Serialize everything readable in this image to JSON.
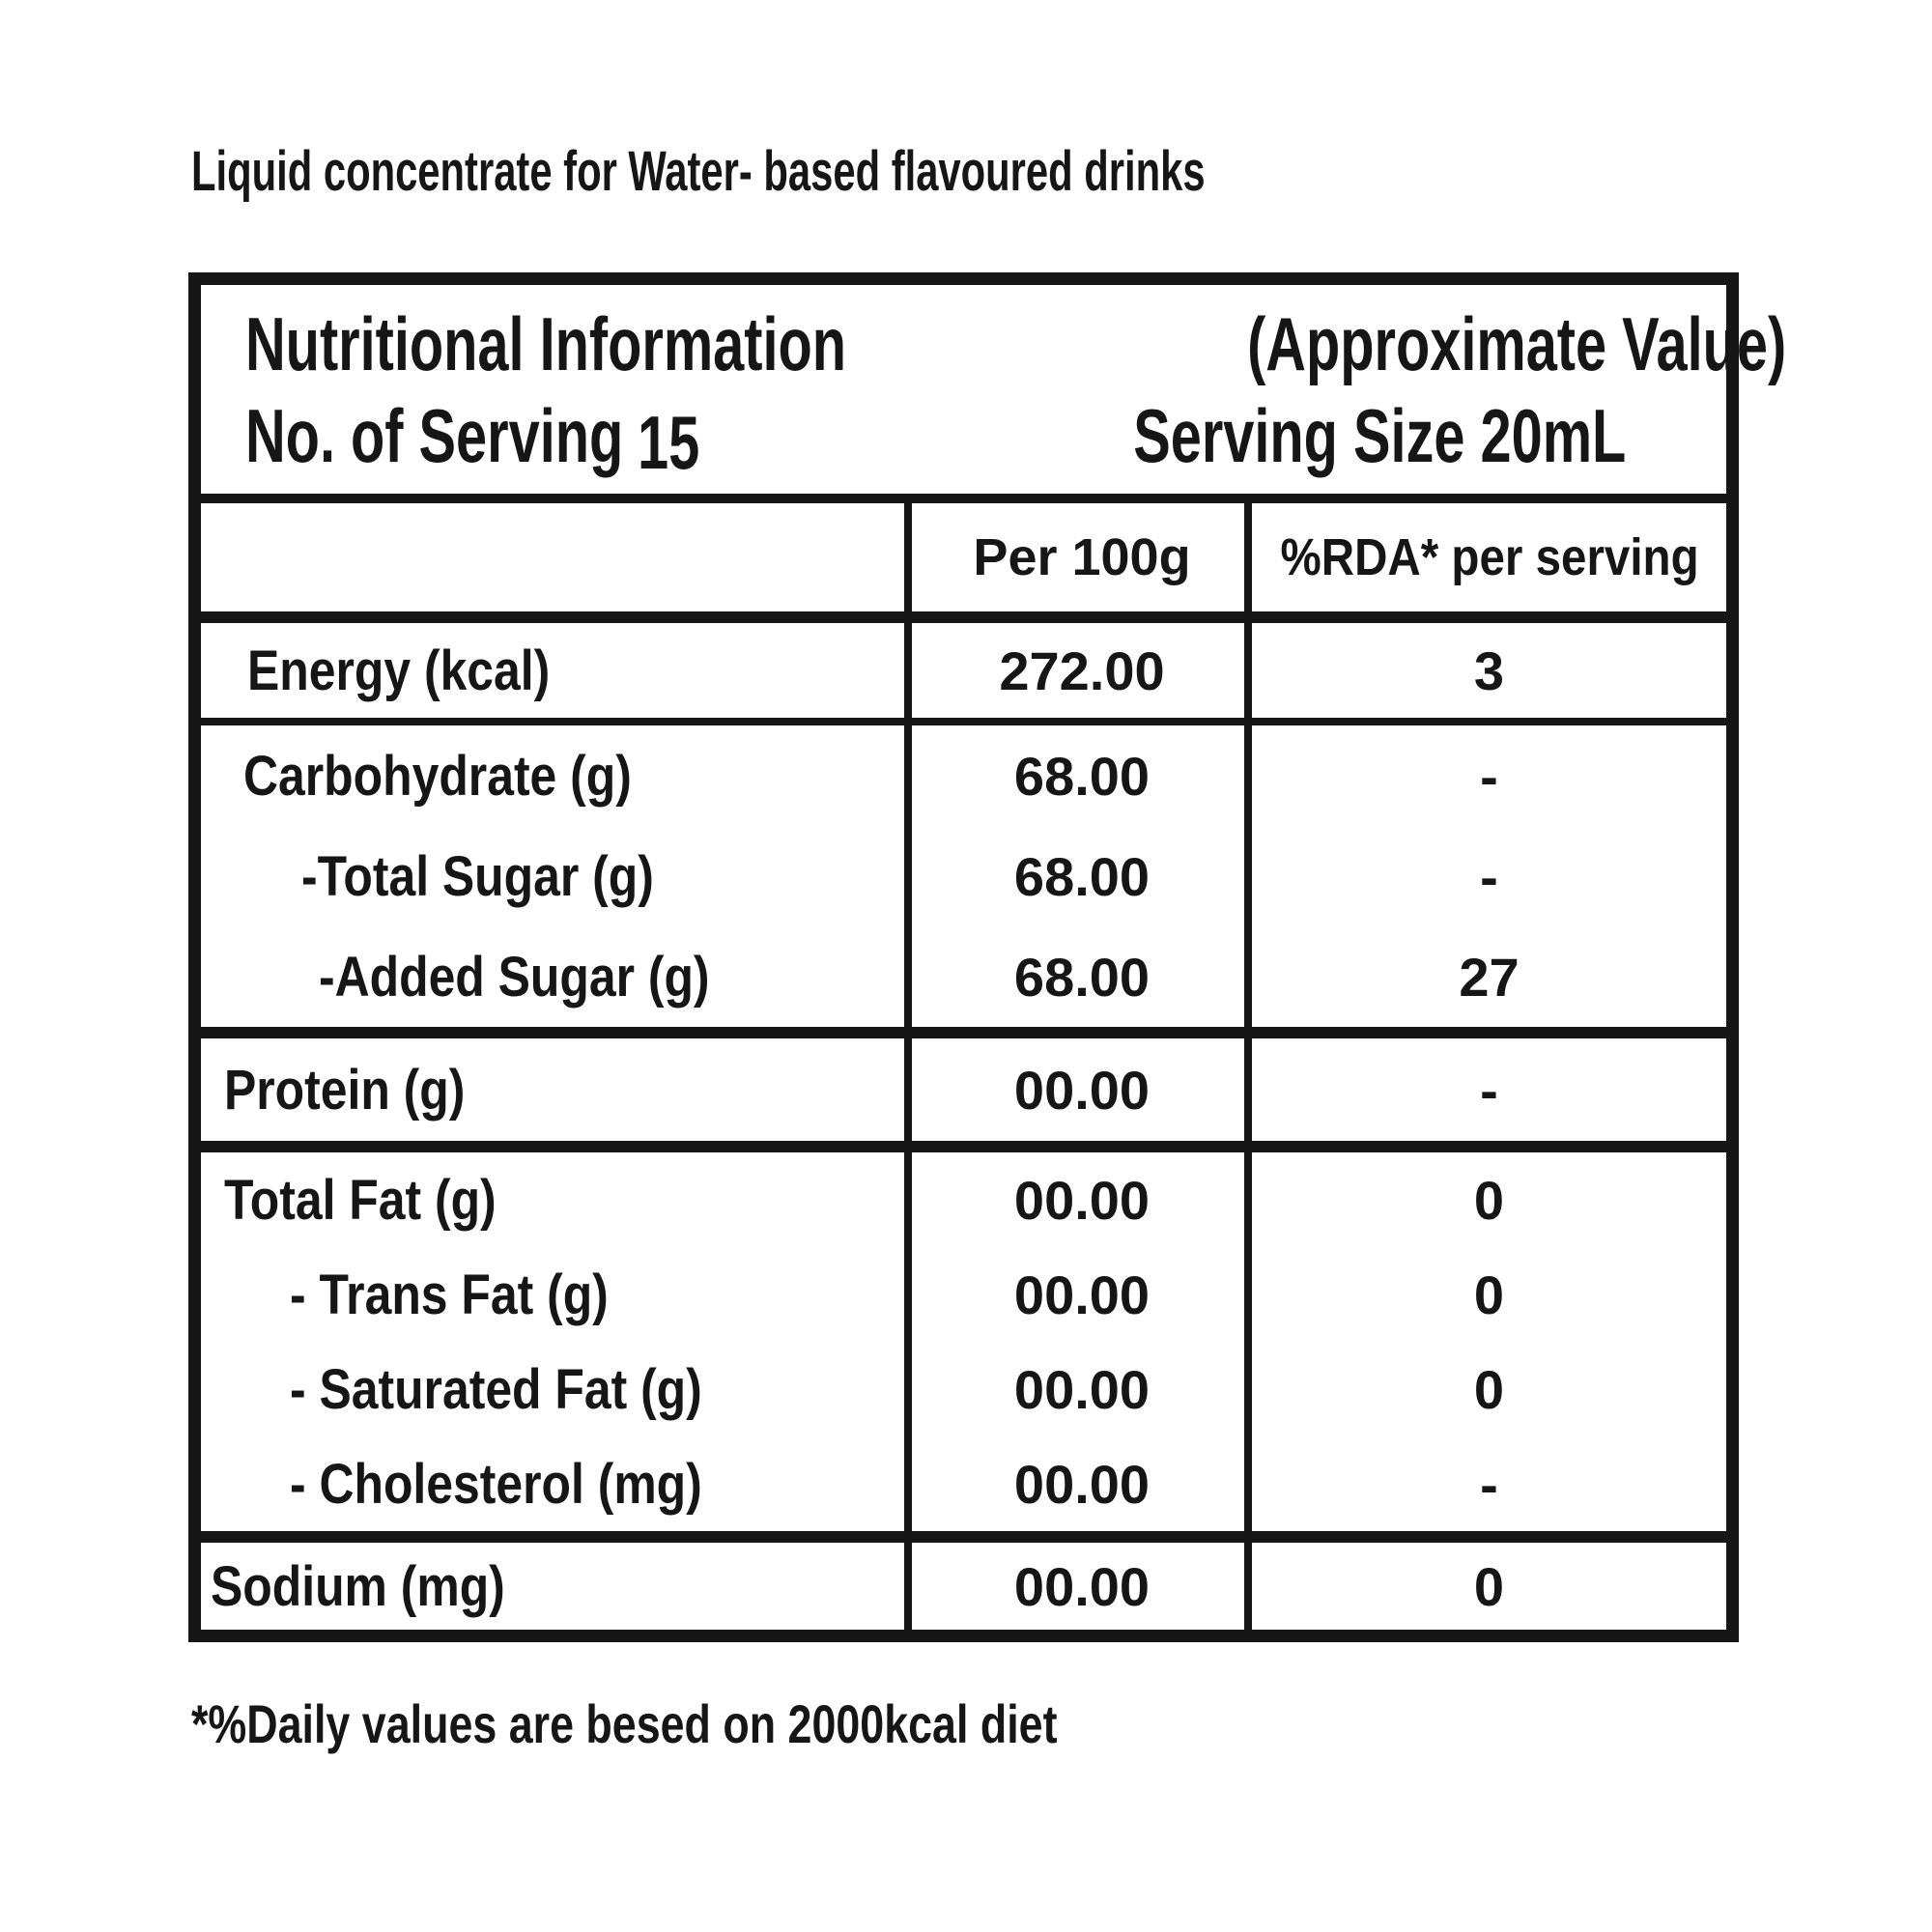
{
  "colors": {
    "ink": "#161616",
    "background": "#ffffff"
  },
  "page": {
    "title": "Liquid concentrate for Water- based flavoured drinks",
    "footnote": "*%Daily values are besed on 2000kcal diet"
  },
  "table": {
    "header": {
      "title": "Nutritional Information",
      "subtitle": "(Approximate Value)",
      "servings_label": "No. of Serving",
      "servings_value": "15",
      "serving_size": "Serving Size 20mL"
    },
    "columns": {
      "item": "",
      "per_100g": "Per 100g",
      "rda": "%RDA* per serving"
    },
    "sections": [
      {
        "name": "energy",
        "lines": [
          {
            "label": "Energy (kcal)",
            "per100g": "272.00",
            "rda": "3"
          }
        ]
      },
      {
        "name": "carbohydrate",
        "lines": [
          {
            "label": "Carbohydrate (g)",
            "per100g": "68.00",
            "rda": "-"
          },
          {
            "label": "-Total Sugar (g)",
            "per100g": "68.00",
            "rda": "-"
          },
          {
            "label": "-Added Sugar (g)",
            "per100g": "68.00",
            "rda": "27"
          }
        ]
      },
      {
        "name": "protein",
        "lines": [
          {
            "label": "Protein (g)",
            "per100g": "00.00",
            "rda": "-"
          }
        ]
      },
      {
        "name": "fat",
        "lines": [
          {
            "label": "Total Fat (g)",
            "per100g": "00.00",
            "rda": "0"
          },
          {
            "label": "- Trans Fat (g)",
            "per100g": "00.00",
            "rda": "0"
          },
          {
            "label": "- Saturated Fat (g)",
            "per100g": "00.00",
            "rda": "0"
          },
          {
            "label": "- Cholesterol (mg)",
            "per100g": "00.00",
            "rda": "-"
          }
        ]
      },
      {
        "name": "sodium",
        "lines": [
          {
            "label": "Sodium (mg)",
            "per100g": "00.00",
            "rda": "0"
          }
        ]
      }
    ]
  }
}
